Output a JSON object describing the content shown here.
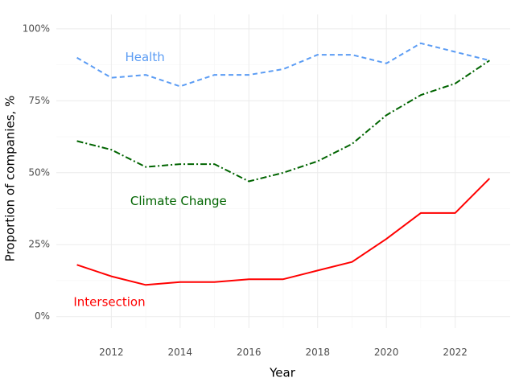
{
  "chart_data": {
    "type": "line",
    "x": [
      2011,
      2012,
      2013,
      2014,
      2015,
      2016,
      2017,
      2018,
      2019,
      2020,
      2021,
      2022,
      2023
    ],
    "series": [
      {
        "name": "Health",
        "color": "#5b9cf4",
        "dash": "dashed",
        "values": [
          90,
          83,
          84,
          80,
          84,
          84,
          86,
          91,
          91,
          88,
          95,
          92,
          89
        ]
      },
      {
        "name": "Climate Change",
        "color": "#006400",
        "dash": "dashdot",
        "values": [
          61,
          58,
          52,
          53,
          53,
          47,
          50,
          54,
          60,
          70,
          77,
          81,
          89
        ]
      },
      {
        "name": "Intersection",
        "color": "#ff0000",
        "dash": "solid",
        "values": [
          18,
          14,
          11,
          12,
          12,
          13,
          13,
          16,
          19,
          27,
          36,
          36,
          48
        ]
      }
    ],
    "xlabel": "Year",
    "ylabel": "Proportion of companies, %",
    "xlim": [
      2010.4,
      2023.6
    ],
    "ylim": [
      -4,
      105
    ],
    "x_ticks": [
      2012,
      2014,
      2016,
      2018,
      2020,
      2022
    ],
    "y_ticks": [
      0,
      25,
      50,
      75,
      100
    ],
    "y_tick_labels": [
      "0%",
      "25%",
      "50%",
      "75%",
      "100%"
    ],
    "grid": true,
    "legend": "none",
    "annotations": [
      {
        "text": "Health",
        "x": 2012.4,
        "y": 90,
        "color": "#5b9cf4"
      },
      {
        "text": "Climate Change",
        "x": 2012.55,
        "y": 40,
        "color": "#006400"
      },
      {
        "text": "Intersection",
        "x": 2010.9,
        "y": 5,
        "color": "#ff0000"
      }
    ]
  }
}
